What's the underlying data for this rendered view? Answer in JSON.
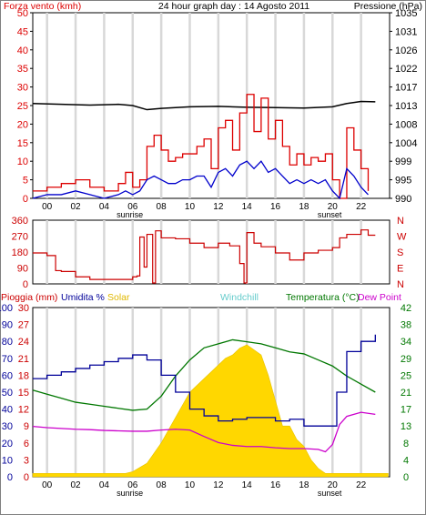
{
  "header": {
    "left_title": "Forza vento (kmh)",
    "center_title": "24 hour graph day : 14 Agosto 2011",
    "right_title": "Pressione (hPa)"
  },
  "colors": {
    "wind_gust": "#dd0000",
    "wind_avg": "#0000cc",
    "pressure": "#000000",
    "direction": "#cc0000",
    "compass": "#cc0000",
    "rain": "#cc0000",
    "humidity": "#000099",
    "solar": "#ffd700",
    "windchill": "#00cccc",
    "temperature": "#007700",
    "dewpoint": "#cc00cc",
    "grid": "#d8d8d8",
    "frame": "#000000"
  },
  "hour_labels": [
    "00",
    "02",
    "04",
    "06",
    "08",
    "10",
    "12",
    "14",
    "16",
    "18",
    "20",
    "22"
  ],
  "sunrise_label": "sunrise",
  "sunset_label": "sunset",
  "chart_data": [
    {
      "type": "line",
      "title": "24 hour graph day : 14 Agosto 2011",
      "xlabel": "",
      "ylabel": "Forza vento (kmh)",
      "y2label": "Pressione (hPa)",
      "x_range_hours": [
        -1,
        24
      ],
      "ylim": [
        0,
        50
      ],
      "y2lim": [
        990,
        1035
      ],
      "y_ticks": [
        0,
        5,
        10,
        15,
        20,
        25,
        30,
        35,
        40,
        45,
        50
      ],
      "y2_ticks": [
        990,
        995,
        999,
        1004,
        1008,
        1013,
        1017,
        1022,
        1026,
        1031,
        1035
      ],
      "series": [
        {
          "name": "Forza vento (kmh)",
          "role": "gust",
          "x": [
            -1,
            0,
            1,
            2,
            3,
            4,
            5,
            5.5,
            6,
            6.5,
            7,
            7.5,
            8,
            8.5,
            9,
            9.5,
            10,
            10.5,
            11,
            11.5,
            12,
            12.5,
            13,
            13.5,
            14,
            14.5,
            15,
            15.5,
            16,
            16.5,
            17,
            17.5,
            18,
            18.5,
            19,
            19.5,
            20,
            20.5,
            21,
            21.5,
            22,
            22.5
          ],
          "values": [
            2,
            3,
            4,
            5,
            3,
            2,
            4,
            7,
            3,
            5,
            14,
            17,
            13,
            10,
            11,
            12,
            12,
            14,
            16,
            8,
            19,
            21,
            13,
            23,
            28,
            18,
            27,
            16,
            21,
            14,
            9,
            12,
            9,
            11,
            10,
            12,
            5,
            0,
            19,
            13,
            8,
            2
          ]
        },
        {
          "name": "",
          "role": "average",
          "x": [
            -1,
            0,
            1,
            2,
            3,
            4,
            5,
            5.5,
            6,
            6.5,
            7,
            7.5,
            8,
            8.5,
            9,
            9.5,
            10,
            10.5,
            11,
            11.5,
            12,
            12.5,
            13,
            13.5,
            14,
            14.5,
            15,
            15.5,
            16,
            16.5,
            17,
            17.5,
            18,
            18.5,
            19,
            19.5,
            20,
            20.5,
            21,
            21.5,
            22,
            22.5
          ],
          "values": [
            0,
            1,
            1,
            2,
            1,
            0,
            1,
            2,
            1,
            2,
            5,
            6,
            5,
            4,
            4,
            5,
            5,
            6,
            6,
            3,
            7,
            8,
            6,
            9,
            10,
            8,
            10,
            7,
            8,
            6,
            4,
            5,
            4,
            5,
            4,
            5,
            2,
            0,
            8,
            6,
            3,
            1
          ]
        },
        {
          "name": "Pressione (hPa)",
          "role": "pressure",
          "axis": "right",
          "x": [
            -1,
            1,
            3,
            5,
            6,
            7,
            8,
            10,
            12,
            14,
            16,
            18,
            20,
            21,
            22,
            23
          ],
          "values": [
            1013,
            1012.8,
            1012.6,
            1012.8,
            1012.5,
            1011.5,
            1011.8,
            1012.2,
            1012.3,
            1012.1,
            1012,
            1011.9,
            1012.2,
            1013,
            1013.5,
            1013.4
          ]
        }
      ]
    },
    {
      "type": "line",
      "ylabel": "",
      "ylim": [
        0,
        360
      ],
      "y_ticks": [
        0,
        90,
        180,
        270,
        360
      ],
      "compass": [
        "N",
        "W",
        "S",
        "E",
        "N"
      ],
      "series": [
        {
          "name": "",
          "role": "wind_direction",
          "x": [
            -1,
            0,
            0.6,
            1,
            2,
            3,
            4,
            5,
            6,
            6.3,
            6.5,
            6.8,
            7,
            7.4,
            7.6,
            8,
            9,
            10,
            11,
            12,
            12.8,
            13.2,
            13.5,
            13.8,
            14,
            14.5,
            15,
            16,
            17,
            18,
            19,
            20,
            20.5,
            21,
            22,
            22.5,
            23
          ],
          "values": [
            175,
            160,
            75,
            70,
            40,
            25,
            25,
            25,
            40,
            45,
            265,
            95,
            280,
            5,
            300,
            260,
            255,
            230,
            205,
            230,
            215,
            215,
            115,
            5,
            290,
            230,
            210,
            175,
            135,
            175,
            190,
            205,
            260,
            280,
            305,
            275,
            275
          ]
        }
      ]
    },
    {
      "type": "line",
      "title": "",
      "ylabel": "Pioggia (mm)",
      "y2label": "Temperatura (°C)",
      "ylim": [
        0,
        30
      ],
      "y2lim": [
        0,
        42
      ],
      "left_tick_cols": [
        [
          "100",
          "90",
          "80",
          "70",
          "60",
          "50",
          "40",
          "30",
          "20",
          "10",
          "0"
        ],
        [
          "30",
          "27",
          "24",
          "21",
          "18",
          "15",
          "12",
          "9",
          "6",
          "3",
          "0"
        ]
      ],
      "right_ticks": [
        "42",
        "38",
        "34",
        "29",
        "25",
        "21",
        "17",
        "13",
        "8",
        "4",
        "0"
      ],
      "legend": [
        {
          "label": "Pioggia (mm)",
          "color_key": "rain"
        },
        {
          "label": "Umidita %",
          "color_key": "humidity"
        },
        {
          "label": "Solar",
          "color_key": "solar"
        },
        {
          "label": "Windchill",
          "color_key": "windchill"
        },
        {
          "label": "Temperatura (°C)",
          "color_key": "temperature"
        },
        {
          "label": "Dew Point",
          "color_key": "dewpoint"
        }
      ],
      "series": [
        {
          "name": "Umidita %",
          "axis": "humidity",
          "x": [
            -1,
            0,
            1,
            2,
            3,
            4,
            5,
            6,
            7,
            8,
            9,
            10,
            11,
            12,
            13,
            14,
            15,
            16,
            17,
            18,
            19,
            20,
            20.3,
            21,
            22,
            23
          ],
          "values": [
            58,
            60,
            62,
            64,
            66,
            68,
            70,
            72,
            69,
            60,
            50,
            40,
            36,
            33,
            34,
            35,
            35,
            33,
            34,
            30,
            30,
            30,
            50,
            74,
            80,
            84
          ]
        },
        {
          "name": "Temperatura (°C)",
          "axis": "right",
          "x": [
            -1,
            0,
            1,
            2,
            3,
            4,
            5,
            6,
            7,
            8,
            9,
            10,
            11,
            12,
            13,
            14,
            15,
            16,
            17,
            18,
            19,
            20,
            21,
            22,
            23
          ],
          "values": [
            21.5,
            20.5,
            19.5,
            18.5,
            18,
            17.5,
            17,
            16.5,
            16.8,
            20,
            25,
            29,
            32,
            33,
            34,
            33.5,
            33,
            32,
            31,
            30.5,
            29,
            27.5,
            25,
            23,
            21
          ]
        },
        {
          "name": "Dew Point",
          "axis": "right",
          "x": [
            -1,
            0,
            1,
            2,
            3,
            4,
            5,
            6,
            7,
            8,
            9,
            10,
            11,
            12,
            13,
            14,
            15,
            16,
            17,
            18,
            19,
            19.5,
            20,
            20.5,
            21,
            22,
            23
          ],
          "values": [
            12.5,
            12.2,
            12,
            11.8,
            11.7,
            11.5,
            11.4,
            11.3,
            11.3,
            11.6,
            11.8,
            11.6,
            10,
            8.5,
            7.8,
            7.5,
            7.5,
            7.2,
            7,
            7,
            6.8,
            6.2,
            8,
            13,
            15,
            16,
            15.5
          ]
        },
        {
          "name": "Solar",
          "axis": "solar_fraction",
          "x": [
            -1,
            5.5,
            6,
            7,
            8,
            9,
            10,
            11,
            12,
            12.5,
            13,
            13.5,
            14,
            14.5,
            15,
            15.5,
            16,
            16.5,
            17,
            17.5,
            18,
            18.5,
            19,
            19.5,
            24
          ],
          "values": [
            0.02,
            0.02,
            0.03,
            0.08,
            0.2,
            0.35,
            0.5,
            0.58,
            0.66,
            0.7,
            0.72,
            0.76,
            0.78,
            0.75,
            0.72,
            0.6,
            0.45,
            0.3,
            0.3,
            0.22,
            0.18,
            0.1,
            0.05,
            0.02,
            0.02
          ]
        }
      ]
    }
  ]
}
